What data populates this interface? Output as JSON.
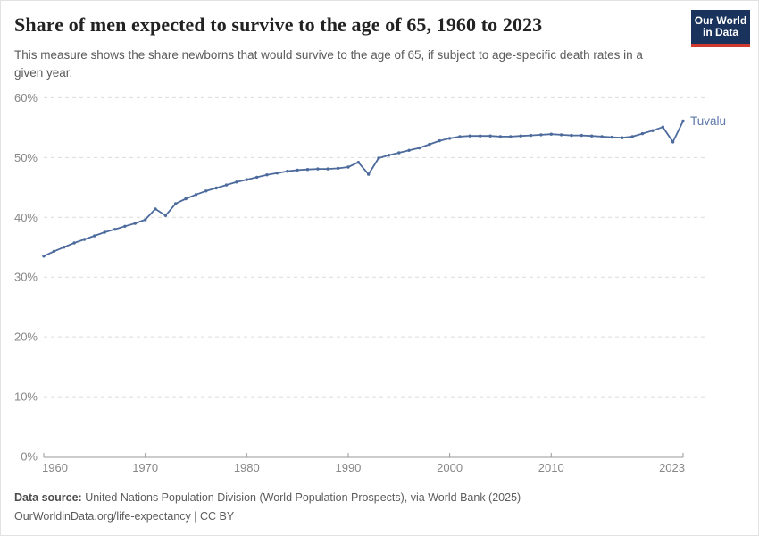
{
  "header": {
    "title": "Share of men expected to survive to the age of 65, 1960 to 2023",
    "subtitle": "This measure shows the share newborns that would survive to the age of 65, if subject to age-specific death rates in a given year.",
    "logo": {
      "line1": "Our World",
      "line2": "in Data"
    }
  },
  "chart_data": {
    "type": "line",
    "title": "Share of men expected to survive to the age of 65, 1960 to 2023",
    "xlabel": "",
    "ylabel": "",
    "x_start": 1960,
    "x_ticks": [
      1960,
      1970,
      1980,
      1990,
      2000,
      2010,
      2023
    ],
    "y_ticks": [
      "0%",
      "10%",
      "20%",
      "30%",
      "40%",
      "50%",
      "60%"
    ],
    "xlim": [
      1960,
      2023
    ],
    "ylim": [
      0,
      60
    ],
    "grid": "horizontal-dashed",
    "legend_position": "end-of-line-label",
    "series": [
      {
        "name": "Tuvalu",
        "values": [
          33.5,
          34.3,
          35.0,
          35.7,
          36.3,
          36.9,
          37.5,
          38.0,
          38.5,
          39.0,
          39.6,
          41.4,
          40.3,
          42.3,
          43.1,
          43.8,
          44.4,
          44.9,
          45.4,
          45.9,
          46.3,
          46.7,
          47.1,
          47.4,
          47.7,
          47.9,
          48.0,
          48.1,
          48.1,
          48.2,
          48.4,
          49.2,
          47.2,
          49.9,
          50.4,
          50.8,
          51.2,
          51.6,
          52.2,
          52.8,
          53.2,
          53.5,
          53.6,
          53.6,
          53.6,
          53.5,
          53.5,
          53.6,
          53.7,
          53.8,
          53.9,
          53.8,
          53.7,
          53.7,
          53.6,
          53.5,
          53.4,
          53.3,
          53.5,
          54.0,
          54.5,
          55.1,
          52.6,
          56.1
        ]
      }
    ],
    "entity_label": "Tuvalu"
  },
  "colors": {
    "line": "#4c6a9c",
    "entity_label": "#5b77a9",
    "grid": "#dcdcdc",
    "tick_text": "#878787",
    "axis": "#989898",
    "logo_navy": "#19335c",
    "logo_red": "#cf3a2f"
  },
  "footer": {
    "source_label": "Data source:",
    "source_text": " United Nations Population Division (World Population Prospects), via World Bank (2025)",
    "link_line": "OurWorldinData.org/life-expectancy | CC BY"
  }
}
